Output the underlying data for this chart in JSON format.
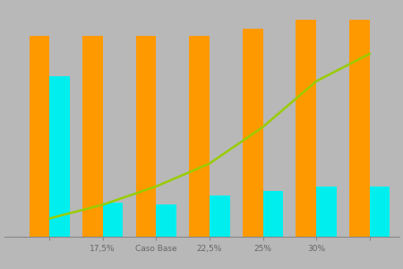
{
  "categories": [
    "",
    "17,5%",
    "Caso Base",
    "22,5%",
    "25%",
    "30%",
    ""
  ],
  "orange_values": [
    88,
    88,
    88,
    88,
    91,
    95,
    95
  ],
  "cyan_values": [
    70,
    15,
    14,
    18,
    20,
    22,
    22
  ],
  "line_y_positions": [
    0,
    1,
    2,
    3,
    4,
    5,
    6
  ],
  "line_y_values": [
    8,
    14,
    22,
    32,
    48,
    68,
    80
  ],
  "bar_width": 0.38,
  "orange_color": "#FF9900",
  "cyan_color": "#00EEEE",
  "line_color": "#99CC00",
  "bg_color": "#B8B8B8",
  "ylim": [
    0,
    100
  ],
  "xlim_left": -0.85,
  "xlim_right": 6.55,
  "tick_fontsize": 6.5,
  "tick_color": "#666666",
  "line_width": 1.8
}
